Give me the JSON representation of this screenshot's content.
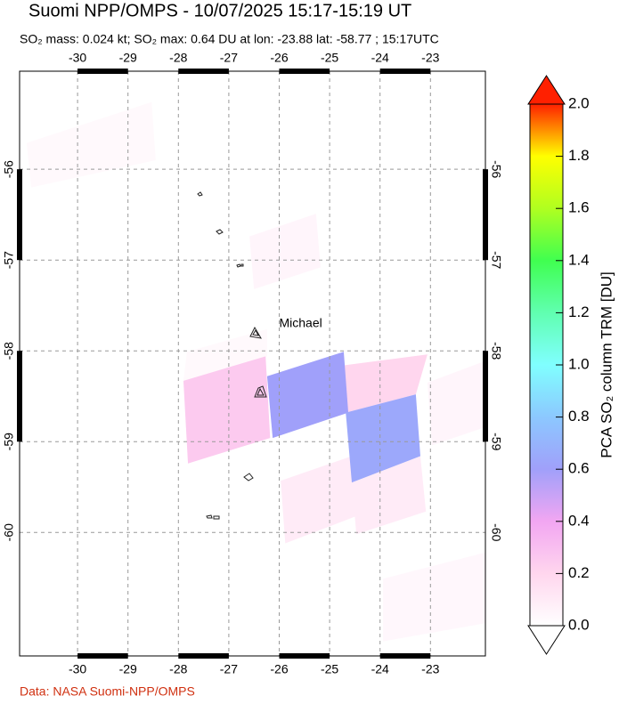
{
  "chart_data": {
    "type": "map",
    "title": "Suomi NPP/OMPS - 10/07/2025 15:17-15:19 UT",
    "subtitle": "SO₂ mass: 0.024 kt; SO₂ max: 0.64 DU at lon: -23.88 lat: -58.77 ; 15:17UTC",
    "xlim": [
      -31.15,
      -21.91
    ],
    "ylim": [
      -61.36,
      -54.92
    ],
    "xticks": [
      -30,
      -29,
      -28,
      -27,
      -26,
      -25,
      -24,
      -23
    ],
    "yticks": [
      -56,
      -57,
      -58,
      -59,
      -60
    ],
    "grid": true,
    "annotations": [
      {
        "text": "Michael",
        "lon": -26.0,
        "lat": -57.7
      }
    ],
    "cells": [
      {
        "lon": [
          -31.01,
          -28.53,
          -28.45,
          -30.92
        ],
        "lat": [
          -55.71,
          -55.26,
          -55.9,
          -56.2
        ],
        "value": 0.03
      },
      {
        "lon": [
          -26.59,
          -25.27,
          -25.18,
          -26.5
        ],
        "lat": [
          -56.74,
          -56.49,
          -57.08,
          -57.32
        ],
        "value": 0.05
      },
      {
        "lon": [
          -27.83,
          -26.24,
          -26.24,
          -27.9
        ],
        "lat": [
          -58.01,
          -57.76,
          -58.06,
          -58.33
        ],
        "value": 0.03
      },
      {
        "lon": [
          -23.06,
          -21.91,
          -21.91,
          -22.97
        ],
        "lat": [
          -58.35,
          -58.11,
          -58.84,
          -59.04
        ],
        "value": 0.05
      },
      {
        "lon": [
          -23.94,
          -21.91,
          -21.91,
          -23.94
        ],
        "lat": [
          -60.51,
          -60.22,
          -61.0,
          -61.2
        ],
        "value": 0.04
      },
      {
        "lon": [
          -27.9,
          -26.27,
          -26.18,
          -27.81
        ],
        "lat": [
          -58.33,
          -58.06,
          -58.96,
          -59.24
        ],
        "value": 0.25
      },
      {
        "lon": [
          -24.72,
          -23.06,
          -23.29,
          -24.68
        ],
        "lat": [
          -58.16,
          -58.04,
          -58.48,
          -58.68
        ],
        "value": 0.2
      },
      {
        "lon": [
          -25.97,
          -24.56,
          -24.47,
          -25.88
        ],
        "lat": [
          -59.43,
          -59.16,
          -59.82,
          -60.12
        ],
        "value": 0.1
      },
      {
        "lon": [
          -24.56,
          -23.2,
          -23.09,
          -24.47
        ],
        "lat": [
          -59.45,
          -59.16,
          -59.77,
          -60.02
        ],
        "value": 0.1
      },
      {
        "lon": [
          -26.24,
          -24.72,
          -24.63,
          -26.13
        ],
        "lat": [
          -58.28,
          -58.01,
          -58.68,
          -58.96
        ],
        "value": 0.6
      },
      {
        "lon": [
          -24.68,
          -23.29,
          -23.2,
          -24.56
        ],
        "lat": [
          -58.68,
          -58.48,
          -59.16,
          -59.45
        ],
        "value": 0.64
      }
    ],
    "colorbar": {
      "label": "PCA SO₂ column TRM [DU]",
      "lim": [
        0,
        2
      ],
      "colors": [
        "#ffffff",
        "#ffd6ee",
        "#f2a6f2",
        "#a0a0fa",
        "#8cc8ff",
        "#80ffff",
        "#60ffb0",
        "#40ff50",
        "#b0ff20",
        "#ffff00",
        "#ff2000"
      ],
      "ticks": [
        {
          "value": 0,
          "label": "0.0"
        },
        {
          "value": 0.2,
          "label": "0.2"
        },
        {
          "value": 0.4,
          "label": "0.4"
        },
        {
          "value": 0.6,
          "label": "0.6"
        },
        {
          "value": 0.8,
          "label": "0.8"
        },
        {
          "value": 1,
          "label": "1.0"
        },
        {
          "value": 1.2,
          "label": "1.2"
        },
        {
          "value": 1.4,
          "label": "1.4"
        },
        {
          "value": 1.6,
          "label": "1.6"
        },
        {
          "value": 1.8,
          "label": "1.8"
        },
        {
          "value": 2,
          "label": "2.0"
        }
      ]
    },
    "footer": "Data: NASA Suomi-NPP/OMPS"
  }
}
